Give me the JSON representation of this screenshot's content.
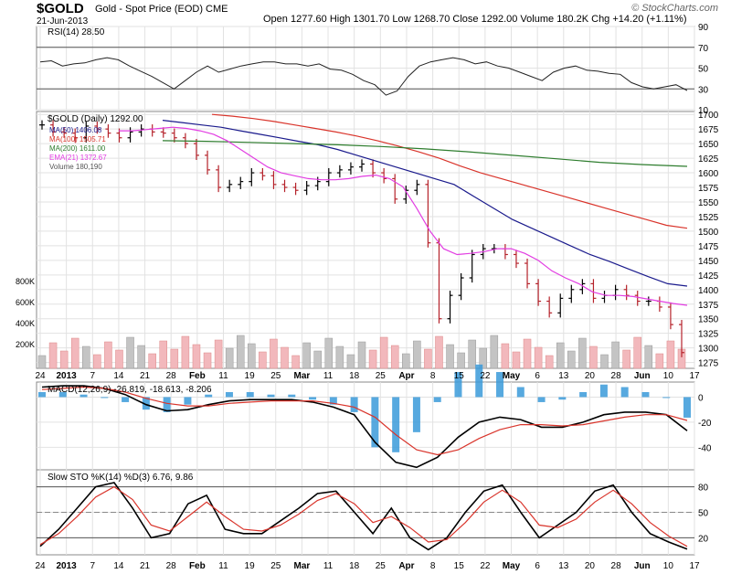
{
  "header": {
    "symbol": "$GOLD",
    "name": "Gold - Spot Price (EOD)",
    "exchange": "CME",
    "date": "21-Jun-2013",
    "brand": "© StockCharts.com",
    "quote": {
      "open_label": "Open",
      "open": "1277.60",
      "high_label": "High",
      "high": "1301.70",
      "low_label": "Low",
      "low": "1268.70",
      "close_label": "Close",
      "close": "1292.00",
      "volume_label": "Volume",
      "volume": "180.2K",
      "chg_label": "Chg",
      "chg": "+14.20 (+1.11%)"
    }
  },
  "colors": {
    "ma50": "#1a1a8c",
    "ma100": "#d9342b",
    "ma200": "#2e7d2e",
    "ema21": "#e23de2",
    "up": "#000000",
    "down": "#b5222a",
    "vol_down": "#f2b8bc",
    "vol_up": "#c4c4c4",
    "macd_hist": "#3a9ad9",
    "trendline": "#1f3bd1",
    "rsi_fill": "#8b5e5e"
  },
  "chart_data": [
    {
      "type": "line",
      "panel": "rsi",
      "legend": "RSI(14) 28.50",
      "ylim": [
        10,
        90
      ],
      "y_ticks": [
        "90",
        "70",
        "50",
        "30",
        "10"
      ],
      "levels": [
        70,
        30
      ],
      "series": [
        {
          "name": "RSI(14)",
          "values": [
            56,
            57,
            52,
            54,
            55,
            58,
            60,
            58,
            52,
            47,
            42,
            36,
            30,
            38,
            46,
            52,
            46,
            49,
            52,
            54,
            56,
            56,
            54,
            54,
            52,
            54,
            49,
            48,
            44,
            38,
            34,
            24,
            28,
            42,
            52,
            56,
            58,
            60,
            58,
            54,
            56,
            52,
            50,
            46,
            42,
            38,
            46,
            50,
            52,
            48,
            47,
            45,
            44,
            36,
            32,
            30,
            32,
            34,
            28.5
          ]
        }
      ]
    },
    {
      "type": "line",
      "panel": "price",
      "legend": "$GOLD (Daily) 1292.00",
      "legend_entries": [
        "MA(50) 1406.08",
        "MA(100) 1505.71",
        "MA(200) 1611.00",
        "EMA(21) 1372.67",
        "Volume 180,190"
      ],
      "ylim": [
        1265,
        1705
      ],
      "y_ticks": [
        "1700",
        "1675",
        "1650",
        "1625",
        "1600",
        "1575",
        "1550",
        "1525",
        "1500",
        "1475",
        "1450",
        "1425",
        "1400",
        "1375",
        "1350",
        "1325",
        "1300",
        "1275"
      ],
      "volume_ticks": [
        "800K",
        "600K",
        "400K",
        "200K"
      ],
      "x_tick_labels": [
        "24",
        "2013",
        "7",
        "14",
        "21",
        "28",
        "Feb",
        "11",
        "19",
        "25",
        "Mar",
        "11",
        "18",
        "25",
        "Apr",
        "8",
        "15",
        "22",
        "May",
        "6",
        "13",
        "20",
        "28",
        "Jun",
        "10",
        "17"
      ],
      "close": [
        1682,
        1670,
        1668,
        1660,
        1680,
        1675,
        1668,
        1660,
        1670,
        1675,
        1670,
        1668,
        1660,
        1650,
        1630,
        1605,
        1575,
        1580,
        1585,
        1600,
        1595,
        1580,
        1575,
        1570,
        1578,
        1585,
        1600,
        1605,
        1610,
        1615,
        1600,
        1590,
        1555,
        1570,
        1580,
        1480,
        1350,
        1390,
        1420,
        1460,
        1470,
        1470,
        1460,
        1445,
        1410,
        1380,
        1360,
        1385,
        1400,
        1410,
        1385,
        1390,
        1400,
        1390,
        1380,
        1380,
        1370,
        1340,
        1292
      ],
      "series": [
        {
          "name": "MA(50)",
          "values": [
            1690,
            1686,
            1682,
            1678,
            1672,
            1666,
            1660,
            1654,
            1648,
            1640,
            1630,
            1620,
            1610,
            1600,
            1590,
            1580,
            1560,
            1540,
            1520,
            1505,
            1490,
            1475,
            1460,
            1448,
            1435,
            1422,
            1410,
            1406
          ]
        },
        {
          "name": "MA(100)",
          "values": [
            1700,
            1697,
            1693,
            1688,
            1682,
            1676,
            1670,
            1663,
            1655,
            1646,
            1636,
            1625,
            1612,
            1600,
            1590,
            1580,
            1570,
            1560,
            1550,
            1540,
            1530,
            1520,
            1510,
            1505
          ]
        },
        {
          "name": "MA(200)",
          "values": [
            1655,
            1654,
            1652,
            1650,
            1648,
            1645,
            1641,
            1636,
            1630,
            1624,
            1618,
            1614,
            1611
          ]
        },
        {
          "name": "EMA(21)",
          "values": [
            1672,
            1672,
            1674,
            1676,
            1678,
            1676,
            1672,
            1666,
            1655,
            1640,
            1625,
            1610,
            1600,
            1595,
            1590,
            1588,
            1588,
            1590,
            1594,
            1596,
            1590,
            1576,
            1540,
            1500,
            1470,
            1460,
            1462,
            1465,
            1470,
            1470,
            1462,
            1450,
            1432,
            1420,
            1410,
            1396,
            1390,
            1390,
            1388,
            1384,
            1380,
            1376,
            1373
          ]
        }
      ]
    },
    {
      "type": "line",
      "panel": "macd",
      "legend": "MACD(12,26,9) -26.819, -18.613, -8.206",
      "ylim": [
        -58,
        12
      ],
      "y_ticks": [
        "0",
        "-20",
        "-40"
      ],
      "series": [
        {
          "name": "MACD",
          "values": [
            8,
            9,
            9,
            7,
            2,
            -6,
            -11,
            -10,
            -6,
            -3,
            -2,
            -2,
            -2,
            -4,
            -8,
            -14,
            -36,
            -52,
            -56,
            -48,
            -32,
            -20,
            -16,
            -18,
            -24,
            -24,
            -20,
            -14,
            -12,
            -12,
            -14,
            -26.8
          ]
        },
        {
          "name": "Signal",
          "values": [
            6,
            7,
            8,
            7,
            4,
            -1,
            -5,
            -7,
            -7,
            -5,
            -4,
            -3,
            -3,
            -3,
            -5,
            -8,
            -16,
            -30,
            -42,
            -46,
            -42,
            -33,
            -26,
            -22,
            -22,
            -23,
            -22,
            -19,
            -16,
            -14,
            -14,
            -18.6
          ]
        }
      ]
    },
    {
      "type": "line",
      "panel": "sto",
      "legend": "Slow STO %K(14) %D(3) 6.76, 9.86",
      "ylim": [
        0,
        100
      ],
      "y_ticks": [
        "80",
        "50",
        "20"
      ],
      "series": [
        {
          "name": "%K",
          "values": [
            10,
            30,
            55,
            80,
            85,
            55,
            20,
            25,
            60,
            70,
            30,
            25,
            25,
            40,
            55,
            72,
            75,
            50,
            25,
            55,
            20,
            6,
            20,
            50,
            75,
            82,
            50,
            20,
            35,
            50,
            75,
            82,
            50,
            25,
            15,
            6.76
          ]
        },
        {
          "name": "%D",
          "values": [
            12,
            25,
            45,
            68,
            80,
            65,
            35,
            28,
            45,
            62,
            45,
            30,
            28,
            35,
            48,
            64,
            72,
            60,
            38,
            45,
            32,
            15,
            18,
            38,
            62,
            76,
            62,
            35,
            32,
            42,
            62,
            76,
            60,
            38,
            22,
            9.86
          ]
        }
      ]
    }
  ]
}
